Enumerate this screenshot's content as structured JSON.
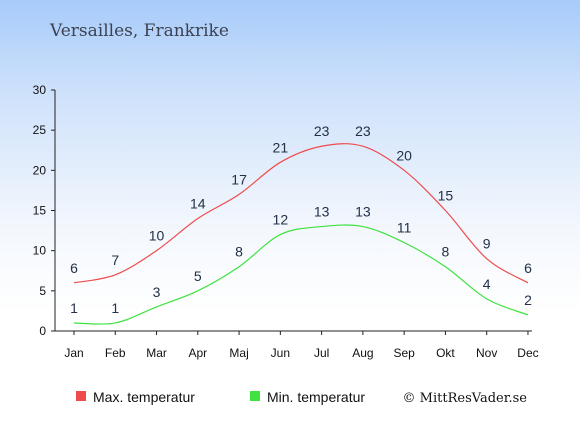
{
  "chart_data": {
    "type": "line",
    "title": "Versailles, Frankrike",
    "categories": [
      "Jan",
      "Feb",
      "Mar",
      "Apr",
      "Maj",
      "Jun",
      "Jul",
      "Aug",
      "Sep",
      "Okt",
      "Nov",
      "Dec"
    ],
    "series": [
      {
        "name": "Max. temperatur",
        "color": "#ef4b4b",
        "values": [
          6,
          7,
          10,
          14,
          17,
          21,
          23,
          23,
          20,
          15,
          9,
          6
        ]
      },
      {
        "name": "Min. temperatur",
        "color": "#3fe23f",
        "values": [
          1,
          1,
          3,
          5,
          8,
          12,
          13,
          13,
          11,
          8,
          4,
          2
        ]
      }
    ],
    "ylim": [
      0,
      30
    ],
    "yticks": [
      0,
      5,
      10,
      15,
      20,
      25,
      30
    ],
    "xlabel": "",
    "ylabel": "",
    "grid": false,
    "legend_position": "bottom-left"
  },
  "credit": "© MittResVader.se"
}
